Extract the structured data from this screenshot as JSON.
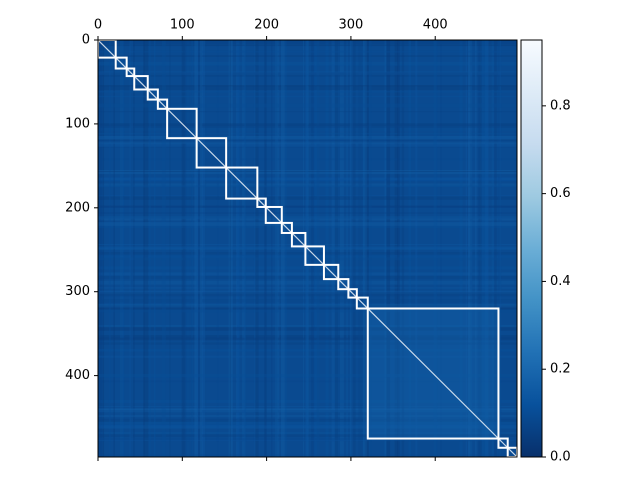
{
  "chart_data": {
    "type": "heatmap",
    "title": "",
    "xlabel": "",
    "ylabel": "",
    "matrix_size": 497,
    "x_axis_position": "top",
    "xlim": [
      0,
      497
    ],
    "ylim": [
      497,
      0
    ],
    "x_ticks": [
      {
        "value": 0,
        "label": "0"
      },
      {
        "value": 100,
        "label": "100"
      },
      {
        "value": 200,
        "label": "200"
      },
      {
        "value": 300,
        "label": "300"
      },
      {
        "value": 400,
        "label": "400"
      }
    ],
    "y_ticks": [
      {
        "value": 0,
        "label": "0"
      },
      {
        "value": 100,
        "label": "100"
      },
      {
        "value": 200,
        "label": "200"
      },
      {
        "value": 300,
        "label": "300"
      },
      {
        "value": 400,
        "label": "400"
      }
    ],
    "colormap": "Blues_r",
    "color_low": "#08306b",
    "color_high": "#f7fbff",
    "colorbar": {
      "range": [
        0.0,
        0.95
      ],
      "ticks": [
        {
          "value": 0.0,
          "label": "0.0"
        },
        {
          "value": 0.2,
          "label": "0.2"
        },
        {
          "value": 0.4,
          "label": "0.4"
        },
        {
          "value": 0.6,
          "label": "0.6"
        },
        {
          "value": 0.8,
          "label": "0.8"
        }
      ]
    },
    "background_value": 0.1,
    "grid": false,
    "cluster_boxes": [
      {
        "start": 0,
        "end": 21
      },
      {
        "start": 21,
        "end": 34
      },
      {
        "start": 34,
        "end": 43
      },
      {
        "start": 43,
        "end": 59
      },
      {
        "start": 59,
        "end": 71
      },
      {
        "start": 71,
        "end": 82
      },
      {
        "start": 82,
        "end": 117
      },
      {
        "start": 117,
        "end": 152
      },
      {
        "start": 152,
        "end": 189
      },
      {
        "start": 189,
        "end": 199
      },
      {
        "start": 199,
        "end": 218
      },
      {
        "start": 218,
        "end": 230
      },
      {
        "start": 230,
        "end": 246
      },
      {
        "start": 246,
        "end": 268
      },
      {
        "start": 268,
        "end": 285
      },
      {
        "start": 285,
        "end": 297
      },
      {
        "start": 297,
        "end": 307
      },
      {
        "start": 307,
        "end": 320
      },
      {
        "start": 320,
        "end": 475
      },
      {
        "start": 475,
        "end": 486
      },
      {
        "start": 486,
        "end": 497
      }
    ]
  }
}
